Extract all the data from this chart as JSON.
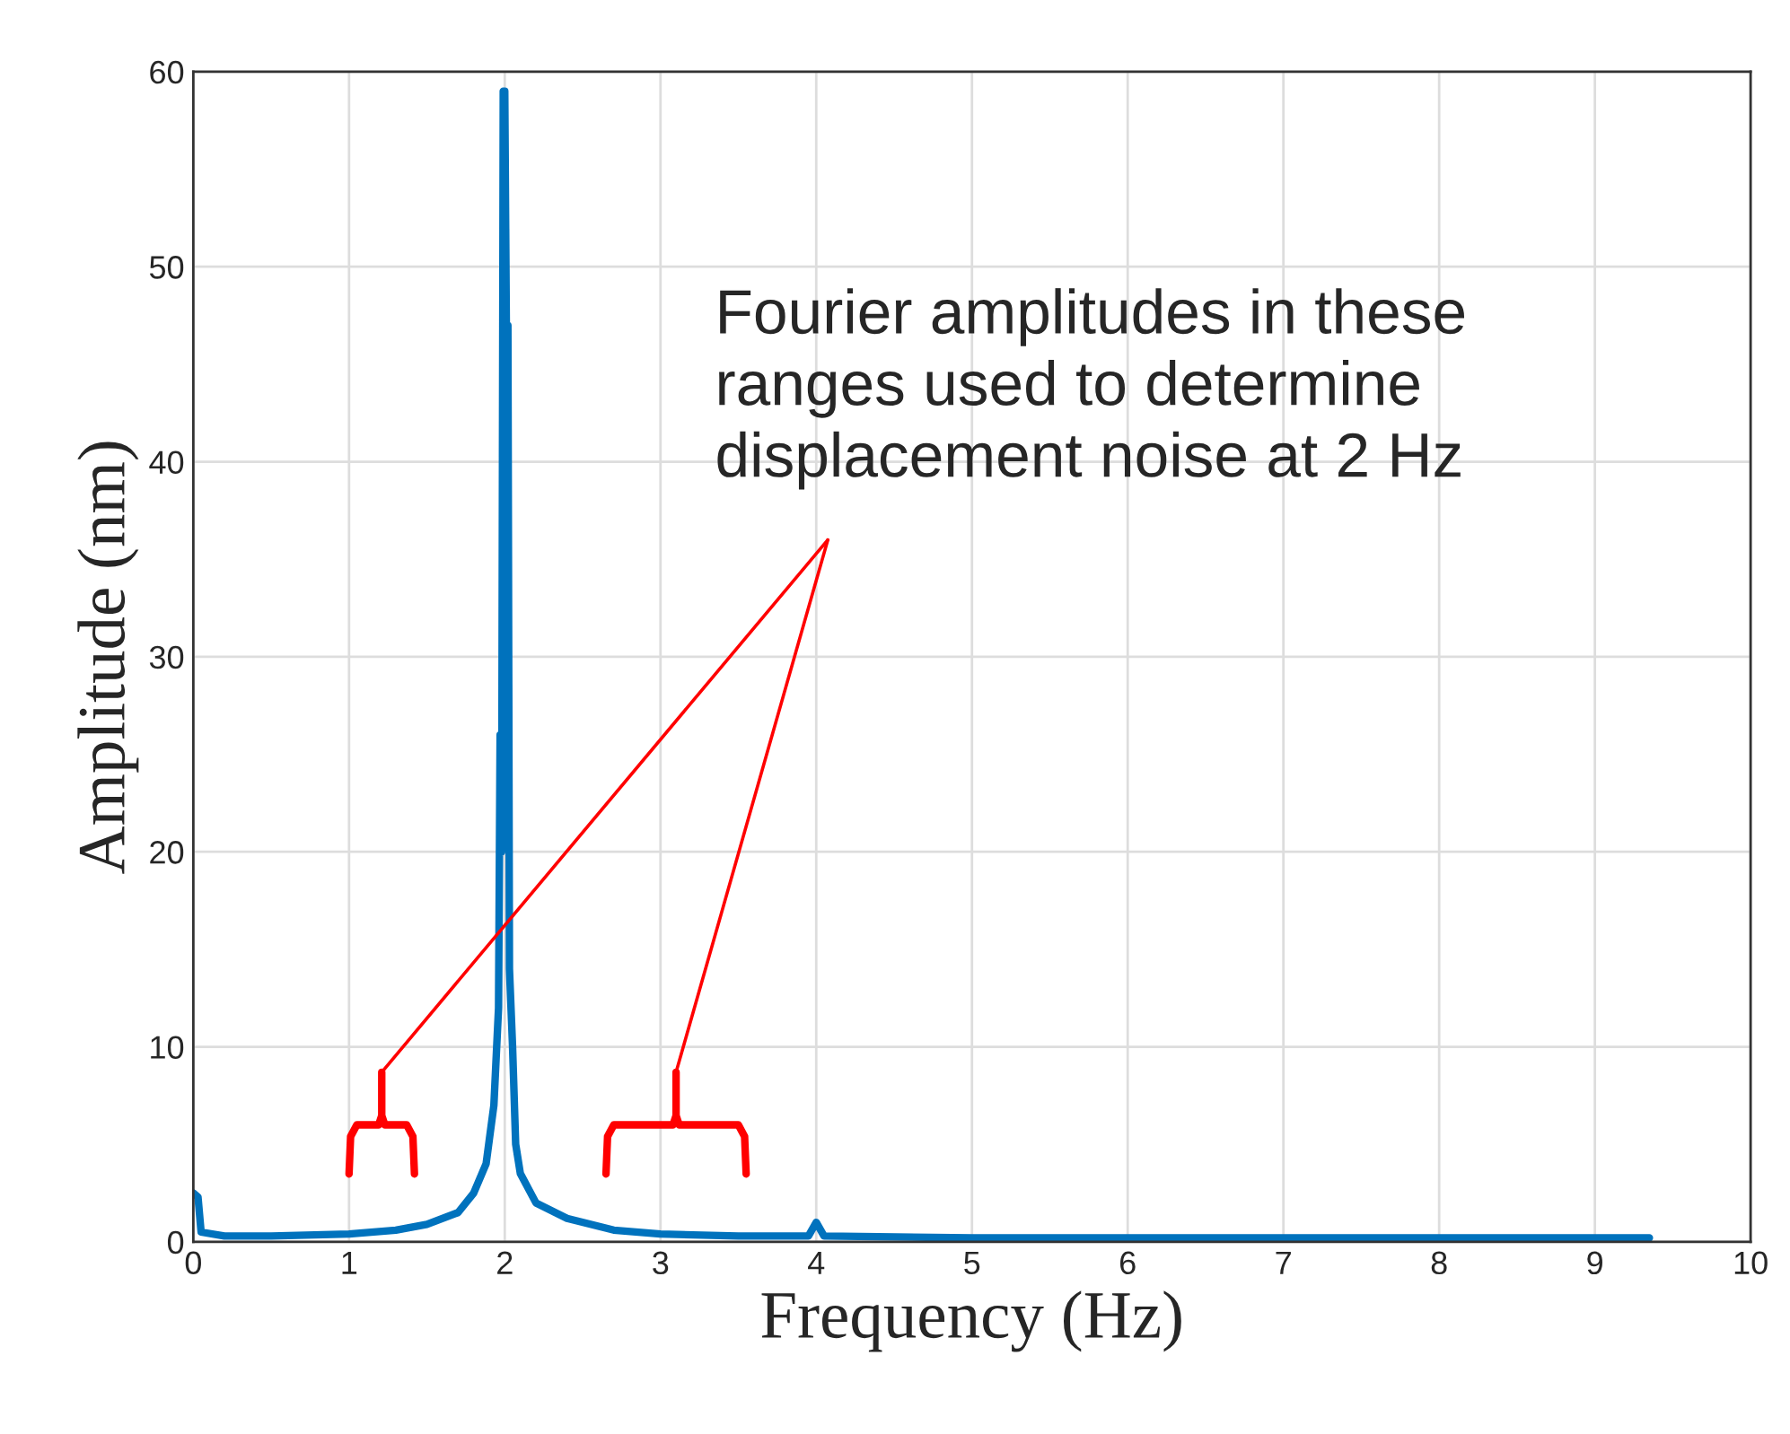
{
  "chart_data": {
    "type": "line",
    "xlabel": "Frequency (Hz)",
    "ylabel": "Amplitude (nm)",
    "annotations": [
      "Fourier amplitudes in these\nranges used to determine\ndisplacement noise at 2 Hz"
    ],
    "series": [
      {
        "color": "#0072bd",
        "x": [
          0,
          0.03,
          0.05,
          0.2,
          0.5,
          1.0,
          1.3,
          1.5,
          1.7,
          1.8,
          1.88,
          1.93,
          1.96,
          1.97,
          1.98,
          1.99,
          2.0,
          2.01,
          2.02,
          2.03,
          2.05,
          2.07,
          2.1,
          2.2,
          2.4,
          2.7,
          3.0,
          3.5,
          3.95,
          4.0,
          4.05,
          5,
          6,
          7,
          8,
          9,
          9.35
        ],
        "values": [
          2.5,
          2.3,
          0.5,
          0.3,
          0.3,
          0.4,
          0.6,
          0.9,
          1.5,
          2.5,
          4,
          7,
          12,
          26,
          20,
          59,
          59,
          47,
          47,
          14,
          10,
          5,
          3.5,
          2,
          1.2,
          0.6,
          0.4,
          0.3,
          0.3,
          1.0,
          0.3,
          0.2,
          0.2,
          0.2,
          0.2,
          0.2,
          0.2
        ]
      }
    ],
    "xlim": [
      0,
      10
    ],
    "ylim": [
      0,
      60
    ],
    "xticks": [
      0,
      1,
      2,
      3,
      4,
      5,
      6,
      7,
      8,
      9,
      10
    ],
    "yticks": [
      0,
      10,
      20,
      30,
      40,
      50,
      60
    ],
    "grid": true,
    "marker": "none",
    "line_style": "solid"
  }
}
